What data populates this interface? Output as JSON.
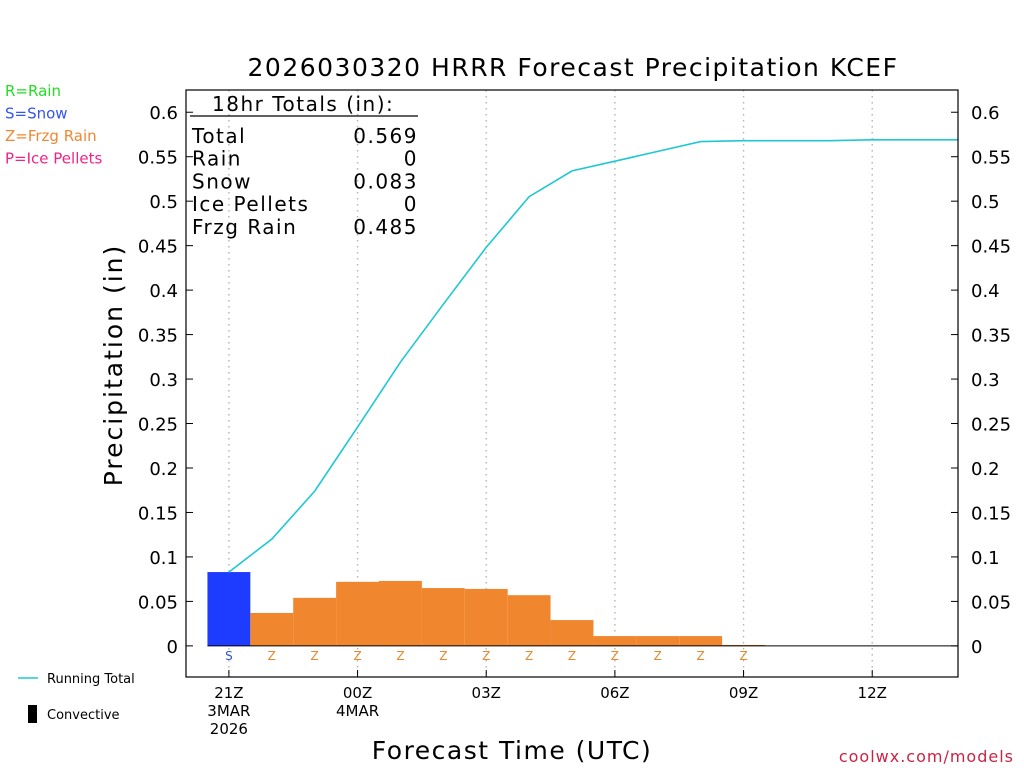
{
  "chart_data": {
    "type": "bar",
    "title": "2026030320 HRRR Forecast Precipitation KCEF",
    "xlabel": "Forecast Time (UTC)",
    "ylabel": "Precipitation (in)",
    "ylim": [
      -0.035,
      0.625
    ],
    "y_ticks": [
      0,
      0.05,
      0.1,
      0.15,
      0.2,
      0.25,
      0.3,
      0.35,
      0.4,
      0.45,
      0.5,
      0.55,
      0.6
    ],
    "y_tick_labels": [
      "0",
      "0.05",
      "0.1",
      "0.15",
      "0.2",
      "0.25",
      "0.3",
      "0.35",
      "0.4",
      "0.45",
      "0.5",
      "0.55",
      "0.6"
    ],
    "x_range_hours": [
      -1,
      17
    ],
    "x_ticks": [
      {
        "hour": 0,
        "lines": [
          "21Z",
          "3MAR",
          "2026"
        ]
      },
      {
        "hour": 3,
        "lines": [
          "00Z",
          "4MAR"
        ]
      },
      {
        "hour": 6,
        "lines": [
          "03Z"
        ]
      },
      {
        "hour": 9,
        "lines": [
          "06Z"
        ]
      },
      {
        "hour": 12,
        "lines": [
          "09Z"
        ]
      },
      {
        "hour": 15,
        "lines": [
          "12Z"
        ]
      }
    ],
    "hourly_bars": [
      {
        "hour": 0,
        "value": 0.083,
        "ptype": "S"
      },
      {
        "hour": 1,
        "value": 0.037,
        "ptype": "Z"
      },
      {
        "hour": 2,
        "value": 0.054,
        "ptype": "Z"
      },
      {
        "hour": 3,
        "value": 0.072,
        "ptype": "Z"
      },
      {
        "hour": 4,
        "value": 0.073,
        "ptype": "Z"
      },
      {
        "hour": 5,
        "value": 0.065,
        "ptype": "Z"
      },
      {
        "hour": 6,
        "value": 0.064,
        "ptype": "Z"
      },
      {
        "hour": 7,
        "value": 0.057,
        "ptype": "Z"
      },
      {
        "hour": 8,
        "value": 0.029,
        "ptype": "Z"
      },
      {
        "hour": 9,
        "value": 0.011,
        "ptype": "Z"
      },
      {
        "hour": 10,
        "value": 0.011,
        "ptype": "Z"
      },
      {
        "hour": 11,
        "value": 0.011,
        "ptype": "Z"
      },
      {
        "hour": 12,
        "value": 0.001,
        "ptype": "Z"
      },
      {
        "hour": 13,
        "value": 0.0,
        "ptype": ""
      },
      {
        "hour": 14,
        "value": 0.0,
        "ptype": ""
      },
      {
        "hour": 15,
        "value": 0.0,
        "ptype": ""
      },
      {
        "hour": 16,
        "value": 0.0,
        "ptype": ""
      },
      {
        "hour": 17,
        "value": 0.0,
        "ptype": ""
      }
    ],
    "running_total": {
      "name": "Running Total",
      "x": [
        0,
        1,
        2,
        3,
        4,
        5,
        6,
        7,
        8,
        9,
        10,
        11,
        12,
        13,
        14,
        15,
        16,
        17
      ],
      "y": [
        0.083,
        0.12,
        0.174,
        0.246,
        0.319,
        0.384,
        0.448,
        0.505,
        0.534,
        0.545,
        0.556,
        0.567,
        0.568,
        0.568,
        0.568,
        0.569,
        0.569,
        0.569
      ]
    },
    "totals_box": {
      "header": "18hr Totals (in):",
      "rows": [
        {
          "label": "Total",
          "value": "0.569"
        },
        {
          "label": "Rain",
          "value": "0"
        },
        {
          "label": "Snow",
          "value": "0.083"
        },
        {
          "label": "Ice Pellets",
          "value": "0"
        },
        {
          "label": "Frzg Rain",
          "value": "0.485"
        }
      ]
    },
    "type_legend": [
      {
        "text": "R=Rain",
        "color": "#22dd22"
      },
      {
        "text": "S=Snow",
        "color": "#3355ee"
      },
      {
        "text": "Z=Frzg Rain",
        "color": "#ee8833"
      },
      {
        "text": "P=Ice Pellets",
        "color": "#ee2288"
      }
    ],
    "series_legend": [
      {
        "text": "Running Total",
        "symbol": "line"
      },
      {
        "text": "Convective",
        "symbol": "bar"
      }
    ],
    "ptype_colors": {
      "S": "#1e3cff",
      "Z": "#f0862d",
      "R": "#22dd22",
      "P": "#ee2288"
    },
    "ptype_letter_colors": {
      "S": "#3355dd",
      "Z": "#e8882e"
    },
    "line_color": "#1ec8d2",
    "credit": "coolwx.com/models",
    "credit_color": "#cc2244"
  }
}
